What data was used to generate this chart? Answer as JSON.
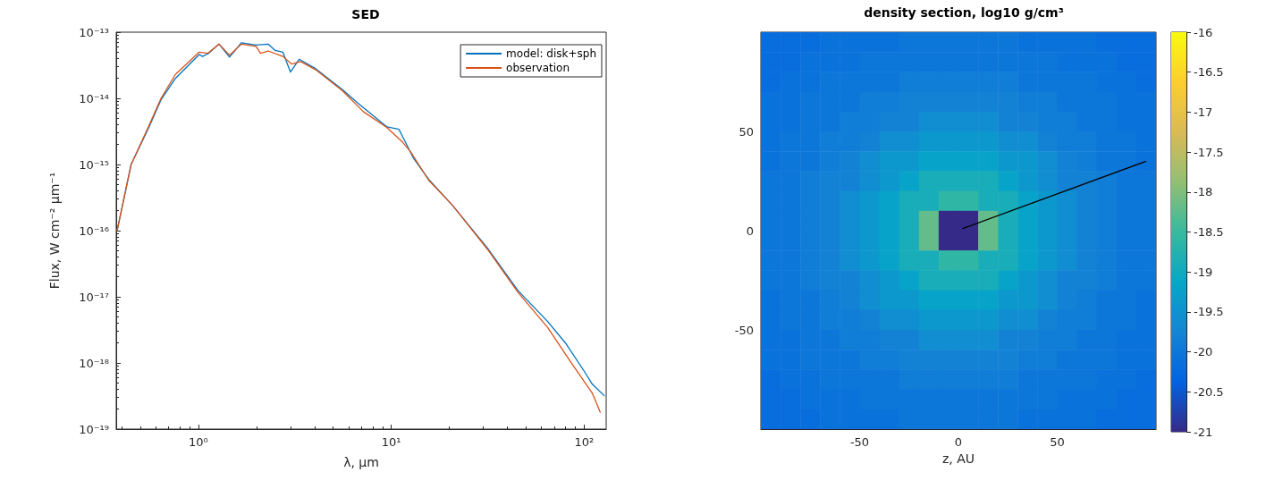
{
  "chart_data": [
    {
      "type": "line",
      "title": "SED",
      "xlabel": "λ, μm",
      "ylabel": "Flux, W cm⁻² μm⁻¹",
      "log": "xy",
      "xlim": [
        0.375,
        130
      ],
      "ylim": [
        1e-19,
        1e-13
      ],
      "xticks": [
        {
          "value": 1,
          "label": "10⁰"
        },
        {
          "value": 10,
          "label": "10¹"
        },
        {
          "value": 100,
          "label": "10²"
        }
      ],
      "yticks": [
        {
          "value": 1e-19,
          "label": "10⁻¹⁹"
        },
        {
          "value": 1e-18,
          "label": "10⁻¹⁸"
        },
        {
          "value": 1e-17,
          "label": "10⁻¹⁷"
        },
        {
          "value": 1e-16,
          "label": "10⁻¹⁶"
        },
        {
          "value": 1e-15,
          "label": "10⁻¹⁵"
        },
        {
          "value": 1e-14,
          "label": "10⁻¹⁴"
        },
        {
          "value": 1e-13,
          "label": "10⁻¹³"
        }
      ],
      "grid": false,
      "legend": "top right",
      "line_style": "solid",
      "series": [
        {
          "name": "model: disk+sph",
          "color": "#0072bd",
          "x": [
            0.379,
            0.448,
            0.555,
            0.64,
            0.76,
            1.01,
            1.05,
            1.12,
            1.28,
            1.45,
            1.67,
            1.99,
            2.3,
            2.5,
            2.74,
            3.0,
            3.33,
            4.06,
            5.58,
            6.7,
            9.5,
            10.96,
            13.0,
            15.6,
            20.8,
            31.9,
            45.3,
            64.8,
            80,
            100,
            110,
            127
          ],
          "values": [
            1e-16,
            1e-15,
            3.7e-15,
            9.5e-15,
            2e-14,
            4.6e-14,
            4.3e-14,
            4.7e-14,
            6.6e-14,
            4.2e-14,
            6.9e-14,
            6.4e-14,
            6.6e-14,
            5.3e-14,
            5e-14,
            2.5e-14,
            3.9e-14,
            2.8e-14,
            1.35e-14,
            8.5e-15,
            3.7e-15,
            3.4e-15,
            1.26e-15,
            6e-16,
            2.4e-16,
            5.2e-17,
            1.25e-17,
            4.2e-18,
            2e-18,
            7.5e-19,
            4.8e-19,
            3.2e-19
          ]
        },
        {
          "name": "observation",
          "color": "#d95319",
          "x": [
            0.379,
            0.448,
            0.555,
            0.64,
            0.76,
            1.01,
            1.12,
            1.28,
            1.45,
            1.67,
            1.99,
            2.1,
            2.3,
            2.74,
            3.05,
            3.39,
            4.06,
            5.58,
            7.16,
            9.5,
            11.4,
            12.6,
            15.6,
            20.8,
            31.9,
            45.3,
            64.8,
            86.2,
            110,
            115,
            121
          ],
          "values": [
            1e-16,
            1e-15,
            3.9e-15,
            1e-14,
            2.3e-14,
            5e-14,
            4.8e-14,
            6.6e-14,
            4.5e-14,
            6.6e-14,
            6.1e-14,
            4.8e-14,
            5.2e-14,
            4.3e-14,
            3.3e-14,
            3.6e-14,
            2.7e-14,
            1.3e-14,
            6.3e-15,
            3.6e-15,
            2.2e-15,
            1.55e-15,
            5.8e-16,
            2.4e-16,
            5e-17,
            1.17e-17,
            3.4e-18,
            9.8e-19,
            3.5e-19,
            2.6e-19,
            1.8e-19
          ]
        }
      ]
    },
    {
      "type": "heatmap",
      "title": "density section, log10 g/cm³",
      "xlabel": "z, AU",
      "xlim": [
        -100,
        100
      ],
      "ylim": [
        -100,
        100
      ],
      "xticks": [
        -50,
        0,
        50
      ],
      "yticks": [
        -50,
        0,
        50
      ],
      "clim": [
        -21,
        -16
      ],
      "cticks": [
        -21,
        -20.5,
        -20,
        -19.5,
        -19,
        -18.5,
        -18,
        -17.5,
        -17,
        -16.5,
        -16
      ],
      "x": [
        -95,
        -85,
        -75,
        -65,
        -55,
        -45,
        -35,
        -25,
        -15,
        -5,
        5,
        15,
        25,
        35,
        45,
        55,
        65,
        75,
        85,
        95
      ],
      "y": [
        95,
        85,
        75,
        65,
        55,
        45,
        35,
        25,
        15,
        5,
        -5,
        -15,
        -25,
        -35,
        -45,
        -55,
        -65,
        -75,
        -85,
        -95
      ],
      "cells": [
        [
          -20.2,
          -20.2,
          -20.2,
          -20.1,
          -20.1,
          -20.1,
          -20.1,
          -20,
          -20,
          -20,
          -20,
          -20,
          -20,
          -20.1,
          -20.1,
          -20.1,
          -20.1,
          -20.2,
          -20.2,
          -20.2
        ],
        [
          -20.2,
          -20.2,
          -20.1,
          -20.1,
          -20.1,
          -20,
          -20,
          -20,
          -20,
          -20,
          -20,
          -20,
          -20,
          -20,
          -20,
          -20.1,
          -20.1,
          -20.1,
          -20.2,
          -20.2
        ],
        [
          -20.2,
          -20.1,
          -20.1,
          -20,
          -20,
          -20,
          -20,
          -19.9,
          -19.9,
          -19.9,
          -19.9,
          -19.9,
          -19.9,
          -20,
          -20,
          -20,
          -20,
          -20.1,
          -20.1,
          -20.2
        ],
        [
          -20.1,
          -20.1,
          -20,
          -20,
          -20,
          -19.9,
          -19.9,
          -19.8,
          -19.8,
          -19.8,
          -19.8,
          -19.8,
          -19.8,
          -19.9,
          -19.9,
          -20,
          -20,
          -20,
          -20.1,
          -20.1
        ],
        [
          -20.1,
          -20.1,
          -20,
          -20,
          -19.9,
          -19.9,
          -19.8,
          -19.8,
          -19.6,
          -19.6,
          -19.6,
          -19.6,
          -19.8,
          -19.8,
          -19.9,
          -19.9,
          -20,
          -20,
          -20.1,
          -20.1
        ],
        [
          -20.1,
          -20,
          -20,
          -19.9,
          -19.9,
          -19.8,
          -19.6,
          -19.6,
          -19.4,
          -19.4,
          -19.4,
          -19.4,
          -19.6,
          -19.6,
          -19.8,
          -19.9,
          -19.9,
          -20,
          -20,
          -20.1
        ],
        [
          -20.1,
          -20,
          -20,
          -19.9,
          -19.8,
          -19.6,
          -19.4,
          -19.4,
          -19.2,
          -19.2,
          -19.2,
          -19.2,
          -19.4,
          -19.4,
          -19.6,
          -19.8,
          -19.9,
          -20,
          -20,
          -20.1
        ],
        [
          -20,
          -20,
          -19.9,
          -19.8,
          -19.8,
          -19.6,
          -19.4,
          -19.2,
          -18.9,
          -18.9,
          -18.9,
          -18.9,
          -19.2,
          -19.4,
          -19.6,
          -19.8,
          -19.8,
          -19.9,
          -20,
          -20
        ],
        [
          -20,
          -20,
          -19.9,
          -19.8,
          -19.6,
          -19.4,
          -19.2,
          -18.9,
          -18.9,
          -18.6,
          -18.6,
          -18.9,
          -18.9,
          -19.2,
          -19.4,
          -19.6,
          -19.8,
          -19.9,
          -20,
          -20
        ],
        [
          -20,
          -20,
          -19.9,
          -19.8,
          -19.6,
          -19.4,
          -19.2,
          -18.9,
          -18.2,
          -21,
          -21,
          -18.2,
          -18.9,
          -19.2,
          -19.4,
          -19.6,
          -19.8,
          -19.9,
          -20,
          -20
        ],
        [
          -20,
          -20,
          -19.9,
          -19.8,
          -19.6,
          -19.4,
          -19.2,
          -18.9,
          -18.2,
          -21,
          -21,
          -18.2,
          -18.9,
          -19.2,
          -19.4,
          -19.6,
          -19.8,
          -19.9,
          -20,
          -20
        ],
        [
          -20,
          -20,
          -19.9,
          -19.8,
          -19.6,
          -19.4,
          -19.2,
          -18.9,
          -18.9,
          -18.6,
          -18.6,
          -18.9,
          -18.9,
          -19.2,
          -19.4,
          -19.6,
          -19.8,
          -19.9,
          -20,
          -20
        ],
        [
          -20,
          -20,
          -19.9,
          -19.8,
          -19.8,
          -19.6,
          -19.4,
          -19.2,
          -18.9,
          -18.9,
          -18.9,
          -18.9,
          -19.2,
          -19.4,
          -19.6,
          -19.8,
          -19.8,
          -19.9,
          -20,
          -20
        ],
        [
          -20.1,
          -20,
          -20,
          -19.9,
          -19.8,
          -19.6,
          -19.4,
          -19.4,
          -19.2,
          -19.2,
          -19.2,
          -19.2,
          -19.4,
          -19.4,
          -19.6,
          -19.8,
          -19.9,
          -20,
          -20,
          -20.1
        ],
        [
          -20.1,
          -20,
          -20,
          -19.9,
          -19.9,
          -19.8,
          -19.6,
          -19.6,
          -19.4,
          -19.4,
          -19.4,
          -19.4,
          -19.6,
          -19.6,
          -19.8,
          -19.9,
          -19.9,
          -20,
          -20,
          -20.1
        ],
        [
          -20.1,
          -20.1,
          -20,
          -20,
          -19.9,
          -19.9,
          -19.8,
          -19.8,
          -19.6,
          -19.6,
          -19.6,
          -19.6,
          -19.8,
          -19.8,
          -19.9,
          -19.9,
          -20,
          -20,
          -20.1,
          -20.1
        ],
        [
          -20.1,
          -20.1,
          -20,
          -20,
          -20,
          -19.9,
          -19.9,
          -19.8,
          -19.8,
          -19.8,
          -19.8,
          -19.8,
          -19.8,
          -19.9,
          -19.9,
          -20,
          -20,
          -20,
          -20.1,
          -20.1
        ],
        [
          -20.2,
          -20.1,
          -20.1,
          -20,
          -20,
          -20,
          -20,
          -19.9,
          -19.9,
          -19.9,
          -19.9,
          -19.9,
          -19.9,
          -20,
          -20,
          -20,
          -20,
          -20.1,
          -20.1,
          -20.2
        ],
        [
          -20.2,
          -20.2,
          -20.1,
          -20.1,
          -20.1,
          -20,
          -20,
          -20,
          -20,
          -20,
          -20,
          -20,
          -20,
          -20,
          -20,
          -20.1,
          -20.1,
          -20.1,
          -20.2,
          -20.2
        ],
        [
          -20.2,
          -20.2,
          -20.2,
          -20.1,
          -20.1,
          -20.1,
          -20.1,
          -20,
          -20,
          -20,
          -20,
          -20,
          -20,
          -20.1,
          -20.1,
          -20.1,
          -20.1,
          -20.2,
          -20.2,
          -20.2
        ]
      ],
      "series": [
        {
          "type": "line",
          "color": "#000000",
          "x": [
            2,
            95
          ],
          "values": [
            1,
            35
          ]
        }
      ]
    }
  ]
}
